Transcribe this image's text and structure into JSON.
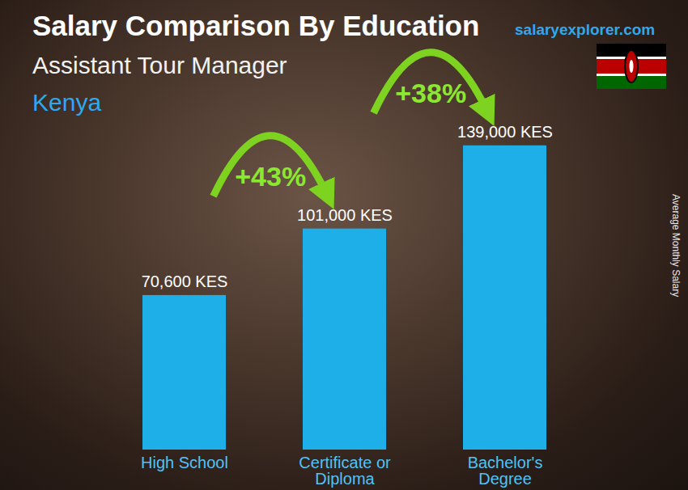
{
  "chart_data": {
    "type": "bar",
    "title": "Salary Comparison By Education",
    "subtitle": "Assistant Tour Manager",
    "region": "Kenya",
    "source": "salaryexplorer.com",
    "ylabel": "Average Monthly Salary",
    "categories": [
      "High School",
      "Certificate or\nDiploma",
      "Bachelor's\nDegree"
    ],
    "values": [
      70600,
      101000,
      139000
    ],
    "value_labels": [
      "70,600 KES",
      "101,000 KES",
      "139,000 KES"
    ],
    "data_labels": true,
    "color": "#1eaee8",
    "ylim": [
      0,
      150000
    ],
    "tick_labels": "x",
    "annotations": [
      {
        "text": "+43%",
        "from": "High School",
        "to": "Certificate or\nDiploma"
      },
      {
        "text": "+38%",
        "from": "Certificate or\nDiploma",
        "to": "Bachelor's\nDegree"
      }
    ]
  }
}
